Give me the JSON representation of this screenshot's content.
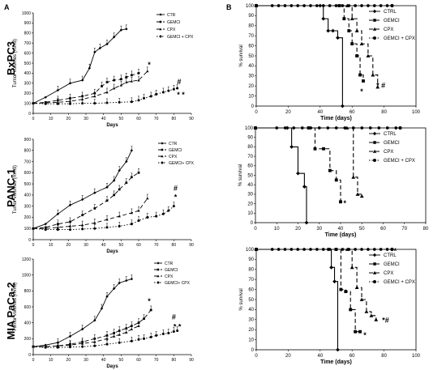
{
  "panel_labels": [
    "A",
    "B"
  ],
  "row_labels": [
    "BxPC3",
    "PANC-1",
    "MIA PaCa-2"
  ],
  "chart_data": [
    {
      "id": "tv-bxpc3",
      "type": "line",
      "panel": "A",
      "title": "",
      "xlabel": "Days",
      "ylabel": "Tumor volumes (mm3)",
      "xlim": [
        0,
        90
      ],
      "ylim": [
        0,
        1000
      ],
      "xticks": [
        0,
        10,
        20,
        30,
        40,
        50,
        60,
        70,
        80,
        90
      ],
      "yticks": [
        0,
        100,
        200,
        300,
        400,
        500,
        600,
        700,
        800,
        900,
        1000
      ],
      "legend_position": "top-right",
      "series": [
        {
          "name": "CTR",
          "marker": "diamond",
          "dash": "solid",
          "x": [
            0,
            7,
            14,
            21,
            28,
            32,
            35,
            38,
            42,
            46,
            50,
            53
          ],
          "y": [
            100,
            160,
            230,
            300,
            330,
            450,
            610,
            650,
            690,
            760,
            830,
            840
          ]
        },
        {
          "name": "GEMCI",
          "marker": "square",
          "dash": "dash",
          "x": [
            0,
            7,
            14,
            21,
            28,
            35,
            39,
            42,
            46,
            50,
            53,
            56,
            60
          ],
          "y": [
            100,
            110,
            130,
            150,
            170,
            200,
            270,
            310,
            330,
            340,
            360,
            380,
            400
          ]
        },
        {
          "name": "CPX",
          "marker": "triangle",
          "dash": "dash",
          "x": [
            0,
            7,
            14,
            21,
            28,
            35,
            42,
            46,
            50,
            53,
            56,
            60,
            65
          ],
          "y": [
            100,
            105,
            110,
            120,
            140,
            170,
            210,
            250,
            280,
            310,
            320,
            330,
            420
          ]
        },
        {
          "name": "GEMCI + CPX",
          "marker": "circle",
          "dash": "dot",
          "x": [
            0,
            7,
            14,
            21,
            28,
            35,
            42,
            49,
            56,
            60,
            63,
            67,
            70,
            74,
            77,
            80,
            82
          ],
          "y": [
            100,
            95,
            95,
            95,
            100,
            100,
            105,
            110,
            115,
            130,
            150,
            170,
            190,
            210,
            225,
            240,
            250
          ]
        }
      ],
      "annotations": [
        {
          "text": "*",
          "x": 66,
          "y": 460
        },
        {
          "text": "#",
          "x": 83,
          "y": 290
        },
        {
          "text": "* *",
          "x": 84,
          "y": 160
        }
      ]
    },
    {
      "id": "tv-panc1",
      "type": "line",
      "panel": "A",
      "title": "",
      "xlabel": "Days",
      "ylabel": "Tumor volumes (mm3)",
      "xlim": [
        0,
        90
      ],
      "ylim": [
        0,
        900
      ],
      "xticks": [
        0,
        10,
        20,
        30,
        40,
        50,
        60,
        70,
        80,
        90
      ],
      "yticks": [
        0,
        100,
        200,
        300,
        400,
        500,
        600,
        700,
        800,
        900
      ],
      "legend_position": "top-right",
      "series": [
        {
          "name": "CTR",
          "marker": "diamond",
          "dash": "solid",
          "x": [
            0,
            7,
            14,
            21,
            28,
            35,
            42,
            46,
            49,
            53,
            56
          ],
          "y": [
            100,
            140,
            230,
            310,
            360,
            420,
            470,
            530,
            620,
            700,
            800
          ]
        },
        {
          "name": "GEMCI",
          "marker": "square",
          "dash": "dash",
          "x": [
            0,
            7,
            14,
            21,
            28,
            35,
            42,
            46,
            49,
            53,
            56,
            60
          ],
          "y": [
            100,
            110,
            140,
            160,
            220,
            280,
            350,
            400,
            450,
            510,
            560,
            600
          ]
        },
        {
          "name": "CPX",
          "marker": "triangle",
          "dash": "dash",
          "x": [
            0,
            7,
            14,
            21,
            28,
            35,
            42,
            49,
            56,
            60,
            65
          ],
          "y": [
            100,
            100,
            110,
            120,
            130,
            150,
            180,
            210,
            240,
            260,
            370
          ]
        },
        {
          "name": "GEMCI+ CPX",
          "marker": "circle",
          "dash": "dot",
          "x": [
            0,
            7,
            14,
            21,
            28,
            35,
            42,
            49,
            56,
            60,
            65,
            70,
            74,
            77,
            80
          ],
          "y": [
            100,
            90,
            90,
            90,
            95,
            100,
            110,
            120,
            140,
            170,
            200,
            210,
            230,
            260,
            300
          ]
        }
      ],
      "annotations": [
        {
          "text": "*",
          "x": 81,
          "y": 360
        },
        {
          "text": "#",
          "x": 81,
          "y": 440
        }
      ]
    },
    {
      "id": "tv-miapaca2",
      "type": "line",
      "panel": "A",
      "title": "",
      "xlabel": "Days",
      "ylabel": "Tumor volumes (mm3)",
      "xlim": [
        0,
        90
      ],
      "ylim": [
        0,
        1200
      ],
      "xticks": [
        0,
        10,
        20,
        30,
        40,
        50,
        60,
        70,
        80,
        90
      ],
      "yticks": [
        0,
        200,
        400,
        600,
        800,
        1000,
        1200
      ],
      "legend_position": "top-right",
      "series": [
        {
          "name": "CTR",
          "marker": "diamond",
          "dash": "solid",
          "x": [
            0,
            7,
            14,
            21,
            28,
            35,
            39,
            42,
            46,
            49,
            53,
            56
          ],
          "y": [
            100,
            120,
            150,
            230,
            320,
            430,
            580,
            730,
            830,
            900,
            930,
            950
          ]
        },
        {
          "name": "GEMCI",
          "marker": "square",
          "dash": "dash",
          "x": [
            0,
            7,
            14,
            21,
            28,
            35,
            42,
            46,
            49,
            53,
            56,
            60,
            63,
            67
          ],
          "y": [
            100,
            100,
            110,
            130,
            160,
            200,
            240,
            270,
            300,
            330,
            360,
            400,
            450,
            560
          ]
        },
        {
          "name": "CPX",
          "marker": "triangle",
          "dash": "dash",
          "x": [
            0,
            7,
            14,
            21,
            28,
            35,
            42,
            46,
            49,
            53,
            56,
            60
          ],
          "y": [
            100,
            100,
            110,
            120,
            140,
            160,
            200,
            230,
            250,
            280,
            320,
            360
          ]
        },
        {
          "name": "GEMCI+ CPX",
          "marker": "circle",
          "dash": "dot",
          "x": [
            0,
            7,
            14,
            21,
            28,
            35,
            42,
            49,
            56,
            60,
            63,
            67,
            70,
            74,
            77,
            80,
            82
          ],
          "y": [
            100,
            90,
            90,
            95,
            100,
            110,
            130,
            150,
            170,
            190,
            200,
            220,
            240,
            260,
            270,
            290,
            300
          ]
        }
      ],
      "annotations": [
        {
          "text": "*",
          "x": 66,
          "y": 640
        },
        {
          "text": "#",
          "x": 80,
          "y": 440
        },
        {
          "text": "* *",
          "x": 82,
          "y": 320
        }
      ]
    },
    {
      "id": "surv-bxpc3",
      "type": "line",
      "panel": "B",
      "title": "",
      "xlabel": "Time (days)",
      "ylabel": "% survival",
      "xlim": [
        0,
        100
      ],
      "ylim": [
        0,
        100
      ],
      "xticks": [
        0,
        20,
        40,
        60,
        80,
        100
      ],
      "yticks": [
        0,
        10,
        20,
        30,
        40,
        50,
        60,
        70,
        80,
        90,
        100
      ],
      "legend_position": "top-right",
      "series": [
        {
          "name": "CTRL",
          "marker": "diamond",
          "dash": "solid",
          "x": [
            0,
            40,
            42,
            45,
            48,
            51,
            54
          ],
          "y": [
            100,
            100,
            87,
            75,
            75,
            68,
            0
          ]
        },
        {
          "name": "GEMCI",
          "marker": "square",
          "dash": "dash",
          "x": [
            0,
            52,
            55,
            58,
            60,
            63,
            65,
            67
          ],
          "y": [
            100,
            100,
            87,
            75,
            62,
            50,
            31,
            25
          ]
        },
        {
          "name": "CPX",
          "marker": "triangle",
          "dash": "dash",
          "x": [
            0,
            57,
            60,
            63,
            66,
            70,
            73,
            76
          ],
          "y": [
            100,
            100,
            87,
            75,
            62,
            50,
            31,
            19
          ]
        },
        {
          "name": "GEMCI + CPX",
          "marker": "circle",
          "dash": "dot",
          "x": [
            0,
            85
          ],
          "y": [
            100,
            100
          ]
        }
      ],
      "annotations": [
        {
          "text": "*",
          "x": 66,
          "y": 12
        },
        {
          "text": "* #",
          "x": 78,
          "y": 18
        }
      ]
    },
    {
      "id": "surv-panc1",
      "type": "line",
      "panel": "B",
      "title": "",
      "xlabel": "Time (days)",
      "ylabel": "% survival",
      "xlim": [
        0,
        80
      ],
      "ylim": [
        0,
        100
      ],
      "xticks": [
        0,
        10,
        20,
        30,
        40,
        50,
        60,
        70,
        80
      ],
      "yticks": [
        0,
        10,
        20,
        30,
        40,
        50,
        60,
        70,
        80,
        90,
        100
      ],
      "legend_position": "top-right",
      "series": [
        {
          "name": "CTRL",
          "marker": "diamond",
          "dash": "solid",
          "x": [
            0,
            15,
            17,
            20,
            23,
            24
          ],
          "y": [
            100,
            100,
            80,
            52,
            38,
            0
          ]
        },
        {
          "name": "GEMCI",
          "marker": "square",
          "dash": "dash",
          "x": [
            0,
            25,
            28,
            32,
            35,
            38,
            40
          ],
          "y": [
            100,
            100,
            78,
            78,
            55,
            45,
            22
          ]
        },
        {
          "name": "CPX",
          "marker": "triangle",
          "dash": "dash",
          "x": [
            0,
            43,
            46,
            48,
            50
          ],
          "y": [
            100,
            100,
            48,
            30,
            28
          ]
        },
        {
          "name": "GEMCI + CPX",
          "marker": "circle",
          "dash": "dot",
          "x": [
            0,
            68
          ],
          "y": [
            100,
            100
          ]
        }
      ],
      "annotations": [
        {
          "text": "*",
          "x": 42,
          "y": 18
        }
      ]
    },
    {
      "id": "surv-miapaca2",
      "type": "line",
      "panel": "B",
      "title": "",
      "xlabel": "Time (days)",
      "ylabel": "% survival",
      "xlim": [
        0,
        100
      ],
      "ylim": [
        0,
        100
      ],
      "xticks": [
        0,
        20,
        40,
        60,
        80,
        100
      ],
      "yticks": [
        0,
        10,
        20,
        30,
        40,
        50,
        60,
        70,
        80,
        90,
        100
      ],
      "legend_position": "top-right",
      "series": [
        {
          "name": "CTRL",
          "marker": "diamond",
          "dash": "solid",
          "x": [
            0,
            45,
            47,
            49,
            51
          ],
          "y": [
            100,
            100,
            82,
            68,
            0
          ]
        },
        {
          "name": "GEMCI",
          "marker": "square",
          "dash": "dash",
          "x": [
            0,
            50,
            53,
            56,
            59,
            62,
            65
          ],
          "y": [
            100,
            100,
            60,
            58,
            40,
            18,
            18
          ]
        },
        {
          "name": "CPX",
          "marker": "triangle",
          "dash": "dash",
          "x": [
            0,
            57,
            60,
            63,
            66,
            69,
            72,
            75
          ],
          "y": [
            100,
            100,
            82,
            62,
            50,
            38,
            34,
            30
          ]
        },
        {
          "name": "GEMCI + CPX",
          "marker": "circle",
          "dash": "dot",
          "x": [
            0,
            85
          ],
          "y": [
            100,
            100
          ]
        }
      ],
      "annotations": [
        {
          "text": "*",
          "x": 68,
          "y": 12
        },
        {
          "text": "*#",
          "x": 81,
          "y": 27
        },
        {
          "text": "*",
          "x": 87,
          "y": 96
        }
      ]
    }
  ]
}
